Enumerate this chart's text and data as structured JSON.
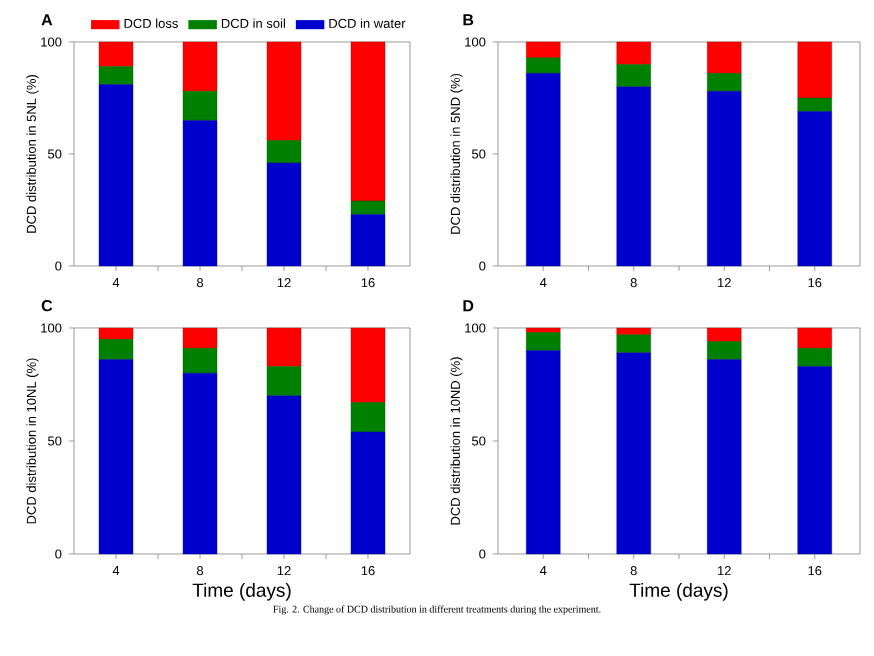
{
  "chart_data": [
    {
      "type": "bar",
      "stacked": true,
      "title": "A",
      "ylabel": "DCD distribution in 5NL (%)",
      "categories": [
        "4",
        "8",
        "12",
        "16"
      ],
      "ylim": [
        0,
        100
      ],
      "yticks": [
        0,
        50,
        100
      ],
      "legend": "top",
      "series": [
        {
          "name": "DCD in water",
          "color": "#0000cc",
          "values": [
            81,
            65,
            46,
            23
          ]
        },
        {
          "name": "DCD in soil",
          "color": "#008000",
          "values": [
            8,
            13,
            10,
            6
          ]
        },
        {
          "name": "DCD loss",
          "color": "#ff0000",
          "values": [
            11,
            22,
            44,
            71
          ]
        }
      ]
    },
    {
      "type": "bar",
      "stacked": true,
      "title": "B",
      "ylabel": "DCD distribution in 5ND (%)",
      "categories": [
        "4",
        "8",
        "12",
        "16"
      ],
      "ylim": [
        0,
        100
      ],
      "yticks": [
        0,
        50,
        100
      ],
      "series": [
        {
          "color": "#0000cc",
          "values": [
            86,
            80,
            78,
            69
          ]
        },
        {
          "color": "#008000",
          "values": [
            7,
            10,
            8,
            6
          ]
        },
        {
          "color": "#ff0000",
          "values": [
            7,
            10,
            14,
            25
          ]
        }
      ]
    },
    {
      "type": "bar",
      "stacked": true,
      "title": "C",
      "ylabel": "DCD distribution in 10NL (%)",
      "xlabel": "Time (days)",
      "categories": [
        "4",
        "8",
        "12",
        "16"
      ],
      "ylim": [
        0,
        100
      ],
      "yticks": [
        0,
        50,
        100
      ],
      "series": [
        {
          "color": "#0000cc",
          "values": [
            86,
            80,
            70,
            54
          ]
        },
        {
          "color": "#008000",
          "values": [
            9,
            11,
            13,
            13
          ]
        },
        {
          "color": "#ff0000",
          "values": [
            5,
            9,
            17,
            33
          ]
        }
      ]
    },
    {
      "type": "bar",
      "stacked": true,
      "title": "D",
      "ylabel": "DCD distribution in 10ND (%)",
      "xlabel": "Time (days)",
      "categories": [
        "4",
        "8",
        "12",
        "16"
      ],
      "ylim": [
        0,
        100
      ],
      "yticks": [
        0,
        50,
        100
      ],
      "annotations": [
        "Fig. 2. Change of DCD distribution in different treatments during the experiment."
      ],
      "series": [
        {
          "color": "#0000cc",
          "values": [
            90,
            89,
            86,
            83
          ]
        },
        {
          "color": "#008000",
          "values": [
            8,
            8,
            8,
            8
          ]
        },
        {
          "color": "#ff0000",
          "values": [
            2,
            3,
            6,
            9
          ]
        }
      ]
    }
  ]
}
